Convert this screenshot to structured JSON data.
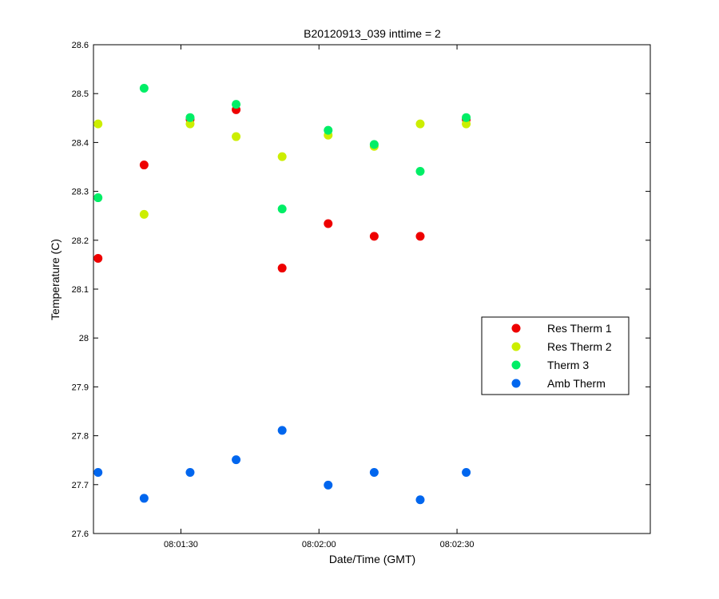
{
  "chart_data": {
    "type": "scatter",
    "title": "B20120913_039 inttime = 2",
    "xlabel": "Date/Time (GMT)",
    "ylabel": "Temperature (C)",
    "x_unit": "time of day (hh:mm:ss)",
    "xlim": [
      "08:01:11",
      "08:03:12"
    ],
    "ylim": [
      27.6,
      28.6
    ],
    "x_ticks": [
      "08:01:30",
      "08:02:00",
      "08:02:30"
    ],
    "y_ticks": [
      "27.6",
      "27.7",
      "27.8",
      "27.9",
      "28",
      "28.1",
      "28.2",
      "28.3",
      "28.4",
      "28.5",
      "28.6"
    ],
    "grid": false,
    "legend_position": "right",
    "x": [
      "08:01:12",
      "08:01:22",
      "08:01:32",
      "08:01:42",
      "08:01:52",
      "08:02:02",
      "08:02:12",
      "08:02:22",
      "08:02:32"
    ],
    "series": [
      {
        "name": "Res Therm 1",
        "color": "#ee0000",
        "values": [
          28.163,
          28.354,
          28.447,
          28.467,
          28.143,
          28.234,
          28.208,
          28.208,
          28.447
        ]
      },
      {
        "name": "Res Therm 2",
        "color": "#ccee00",
        "values": [
          28.438,
          28.253,
          28.438,
          28.412,
          28.371,
          28.415,
          28.392,
          28.438,
          28.438
        ]
      },
      {
        "name": "Therm 3",
        "color": "#00ee66",
        "values": [
          28.287,
          28.511,
          28.451,
          28.478,
          28.264,
          28.425,
          28.396,
          28.341,
          28.451
        ]
      },
      {
        "name": "Amb Therm",
        "color": "#0066ee",
        "values": [
          27.725,
          27.672,
          27.725,
          27.751,
          27.811,
          27.699,
          27.725,
          27.669,
          27.725
        ]
      }
    ]
  }
}
